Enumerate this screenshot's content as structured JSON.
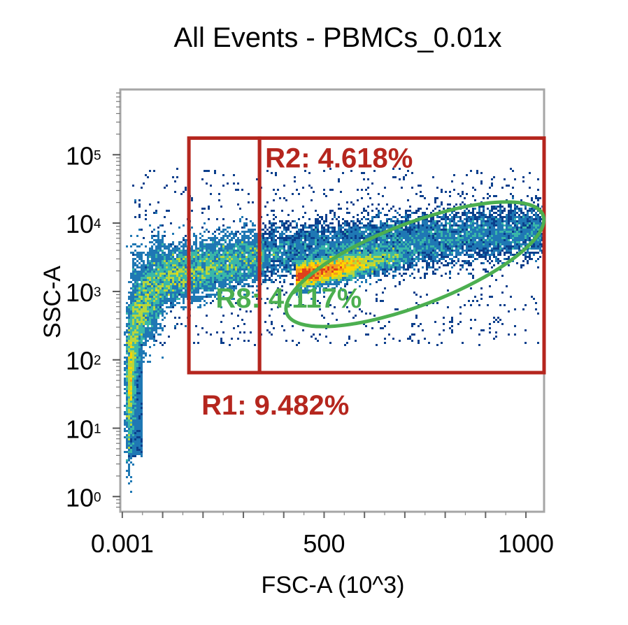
{
  "chart_data": {
    "type": "scatter",
    "title": "All Events - PBMCs_0.01x",
    "xlabel": "FSC-A (10^3)",
    "ylabel": "SSC-A",
    "x_scale": "linear",
    "y_scale": "log",
    "xlim": [
      -5,
      1045
    ],
    "ylim": [
      0.6,
      900000
    ],
    "x_ticks": [
      {
        "value": 0.001,
        "label": "0.001"
      },
      {
        "value": 500,
        "label": "500"
      },
      {
        "value": 1000,
        "label": "1000"
      }
    ],
    "y_ticks": [
      {
        "value": 1,
        "base": "10",
        "exp": "0"
      },
      {
        "value": 10,
        "base": "10",
        "exp": "1"
      },
      {
        "value": 100,
        "base": "10",
        "exp": "2"
      },
      {
        "value": 1000,
        "base": "10",
        "exp": "3"
      },
      {
        "value": 10000,
        "base": "10",
        "exp": "4"
      },
      {
        "value": 100000,
        "base": "10",
        "exp": "5"
      }
    ],
    "density_colormap": [
      "#0b3f8c",
      "#1f78b4",
      "#3ab7a8",
      "#b8d63c",
      "#ffd400",
      "#f29a1d",
      "#e0401b"
    ],
    "gates": [
      {
        "name": "R1",
        "shape": "rectangle",
        "label": "R1: 9.482%",
        "color": "#b5261e",
        "x_range": [
          165,
          340
        ],
        "y_range": [
          65,
          175000
        ]
      },
      {
        "name": "R2",
        "shape": "rectangle",
        "label": "R2: 4.618%",
        "color": "#b5261e",
        "x_range": [
          340,
          1045
        ],
        "y_range": [
          65,
          175000
        ]
      },
      {
        "name": "R8",
        "shape": "ellipse",
        "label": "R8: 4.117%",
        "color": "#4caf50",
        "center": [
          725,
          2500
        ],
        "x_semi_axis": 340,
        "y_decades_semi_axis": 0.6,
        "rotation_deg": -21
      }
    ],
    "grid": false,
    "legend": "none"
  }
}
